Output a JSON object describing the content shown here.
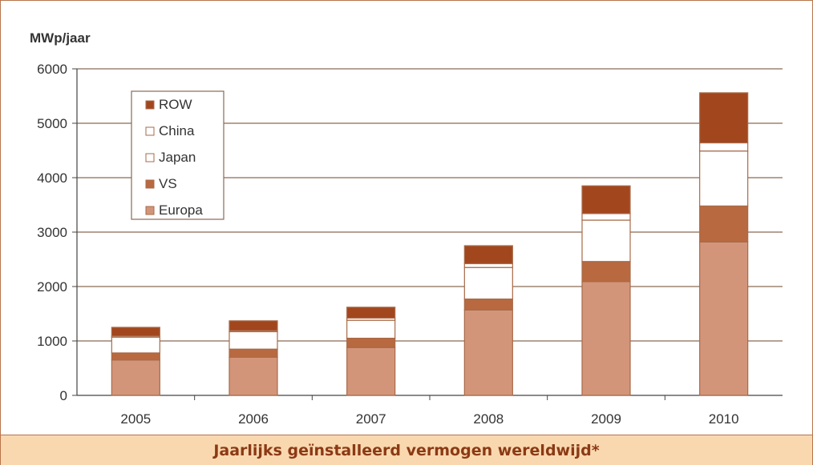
{
  "caption": "Jaarlijks geïnstalleerd vermogen wereldwijd*",
  "chart_data": {
    "type": "bar",
    "stacked": true,
    "ylabel": "MWp/jaar",
    "ylim": [
      0,
      6000
    ],
    "yticks": [
      "0",
      "1000",
      "2000",
      "3000",
      "4000",
      "5000",
      "6000"
    ],
    "categories": [
      "2005",
      "2006",
      "2007",
      "2008",
      "2009",
      "2010"
    ],
    "series": [
      {
        "name": "Europa",
        "color": "#d3957a",
        "values": [
          650,
          700,
          880,
          1570,
          2090,
          2820
        ]
      },
      {
        "name": "VS",
        "color": "#b8693f",
        "values": [
          130,
          150,
          170,
          200,
          370,
          660
        ]
      },
      {
        "name": "Japan",
        "color": "#ffffff",
        "values": [
          290,
          320,
          330,
          580,
          760,
          1010
        ]
      },
      {
        "name": "China",
        "color": "#ffffff",
        "values": [
          20,
          20,
          40,
          70,
          120,
          150
        ]
      },
      {
        "name": "ROW",
        "color": "#a2461e",
        "values": [
          160,
          180,
          200,
          330,
          510,
          920
        ]
      }
    ],
    "legend_order": [
      "ROW",
      "China",
      "Japan",
      "VS",
      "Europa"
    ],
    "legend_position": "top-left",
    "grid": true
  }
}
